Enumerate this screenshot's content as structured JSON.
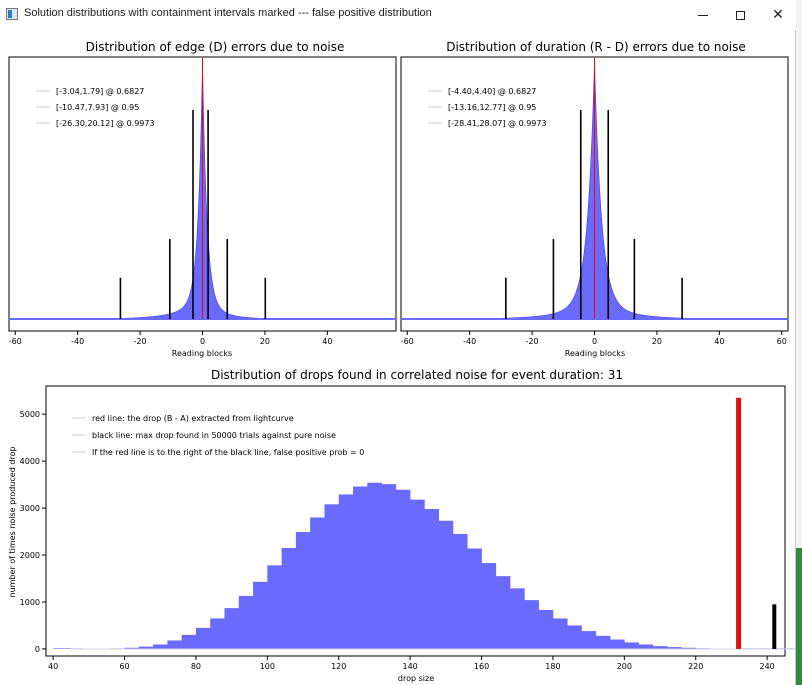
{
  "window": {
    "title": "Solution distributions with containment intervals marked --- false positive distribution",
    "minimize_icon": "minimize-icon",
    "maximize_icon": "maximize-icon",
    "close_icon": "close-icon",
    "close_glyph": "✕"
  },
  "colors": {
    "histogram": "#6a6afc",
    "histogram_edge": "#3c3cf0",
    "marker_red": "#ff0000",
    "drop_red": "#dd1111",
    "black": "#000000",
    "legend_line": "#e6e6ee"
  },
  "chart_data": [
    {
      "type": "bar",
      "title": "Distribution of edge (D) errors due to noise",
      "xlabel": "Reading blocks",
      "ylabel": "",
      "xlim": [
        -62,
        62
      ],
      "xticks": [
        -60,
        -40,
        -20,
        0,
        20,
        40
      ],
      "legend": [
        "[-3.04,1.79] @ 0.6827",
        "[-10.47,7.93] @ 0.95",
        "[-26.30,20.12] @ 0.9973"
      ],
      "legend_position": "top-left",
      "peak_line_x": 0,
      "distribution": {
        "center": 0,
        "scale": 1.4,
        "width_left": 7.5,
        "width_right": 5.5
      },
      "interval_lines": [
        {
          "x": -3.04,
          "height": 0.81
        },
        {
          "x": 1.79,
          "height": 0.81
        },
        {
          "x": -10.47,
          "height": 0.31
        },
        {
          "x": 7.93,
          "height": 0.31
        },
        {
          "x": -26.3,
          "height": 0.16
        },
        {
          "x": 20.12,
          "height": 0.16
        }
      ]
    },
    {
      "type": "bar",
      "title": "Distribution of duration (R - D) errors due to noise",
      "xlabel": "Reading blocks",
      "ylabel": "",
      "xlim": [
        -62,
        62
      ],
      "xticks": [
        -60,
        -40,
        -20,
        0,
        20,
        40,
        60
      ],
      "legend": [
        "[-4.40,4.40] @ 0.6827",
        "[-13.16,12.77] @ 0.95",
        "[-28.41,28.07] @ 0.9973"
      ],
      "legend_position": "top-left",
      "peak_line_x": 0,
      "distribution": {
        "center": 0,
        "scale": 2.2,
        "width_left": 9.0,
        "width_right": 9.0
      },
      "interval_lines": [
        {
          "x": -4.4,
          "height": 0.81
        },
        {
          "x": 4.4,
          "height": 0.81
        },
        {
          "x": -13.16,
          "height": 0.31
        },
        {
          "x": 12.77,
          "height": 0.31
        },
        {
          "x": -28.41,
          "height": 0.16
        },
        {
          "x": 28.07,
          "height": 0.16
        }
      ]
    },
    {
      "type": "bar",
      "title": "Distribution of drops found in correlated noise for event duration: 31",
      "xlabel": "drop size",
      "ylabel": "number of times noise produced drop",
      "xlim": [
        38,
        245
      ],
      "ylim": [
        -150,
        5600
      ],
      "xticks": [
        40,
        60,
        80,
        100,
        120,
        140,
        160,
        180,
        200,
        220,
        240
      ],
      "yticks": [
        0,
        1000,
        2000,
        3000,
        4000,
        5000
      ],
      "legend": [
        "red line: the drop (B - A) extracted from lightcurve",
        "black line: max drop found in 50000 trials against pure noise",
        "If the red line is to the right of the black line, false positive prob = 0"
      ],
      "legend_position": "top-left",
      "bin_start": 40,
      "bin_width": 4,
      "counts": [
        0,
        0,
        2,
        6,
        12,
        25,
        50,
        95,
        180,
        300,
        450,
        650,
        870,
        1130,
        1430,
        1780,
        2150,
        2490,
        2800,
        3080,
        3290,
        3460,
        3540,
        3510,
        3390,
        3180,
        2980,
        2730,
        2450,
        2140,
        1830,
        1550,
        1290,
        1040,
        830,
        650,
        500,
        380,
        280,
        200,
        140,
        95,
        60,
        40,
        25,
        15,
        9,
        5,
        0,
        0,
        0,
        0,
        0
      ],
      "red_line": {
        "x": 232,
        "y": 5350
      },
      "black_line": {
        "x": 242,
        "y": 950
      }
    }
  ]
}
